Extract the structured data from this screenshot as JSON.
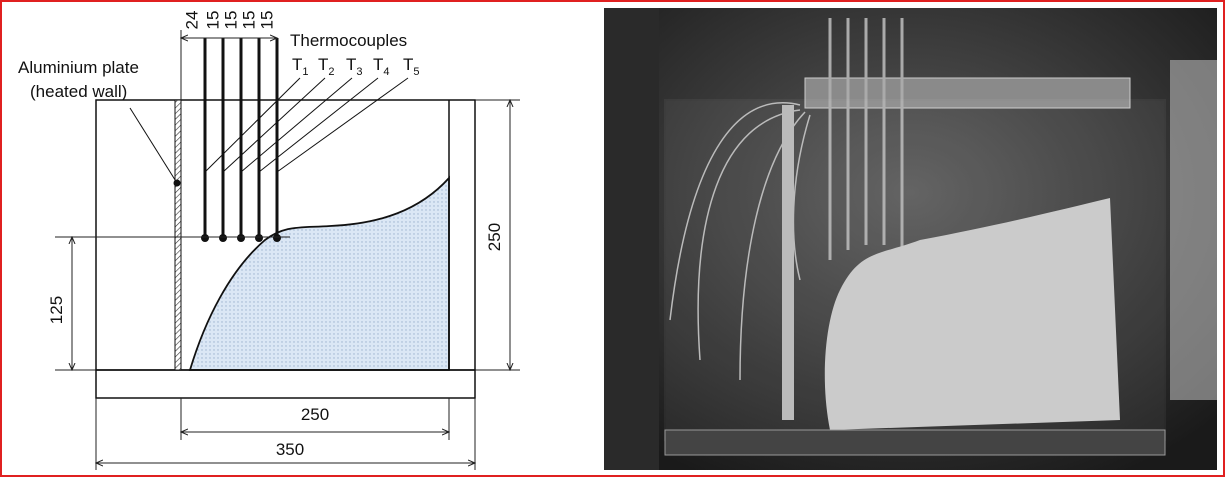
{
  "labels": {
    "plate": [
      "Aluminium plate",
      "(heated wall)"
    ],
    "thermocouples": "Thermocouples"
  },
  "sensors": [
    {
      "name": "T",
      "index": "1"
    },
    {
      "name": "T",
      "index": "2"
    },
    {
      "name": "T",
      "index": "3"
    },
    {
      "name": "T",
      "index": "4"
    },
    {
      "name": "T",
      "index": "5"
    }
  ],
  "dimensions": {
    "spacing": [
      24,
      15,
      15,
      15,
      15
    ],
    "height": 250,
    "level": 125,
    "inner_width": 250,
    "outer_width": 350
  }
}
